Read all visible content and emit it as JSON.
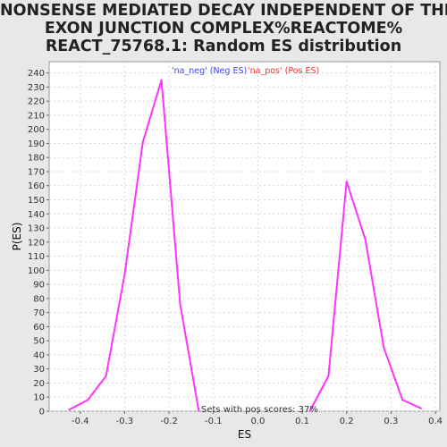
{
  "chart_data": {
    "type": "line",
    "title_lines": [
      "NONSENSE MEDIATED DECAY INDEPENDENT OF THE",
      "EXON JUNCTION COMPLEX%REACTOME%",
      "REACT_75768.1: Random ES distribution"
    ],
    "xlabel": "ES",
    "ylabel": "P(ES)",
    "xlim": [
      -0.47,
      0.41
    ],
    "ylim": [
      0,
      248
    ],
    "x_ticks": [
      -0.4,
      -0.3,
      -0.2,
      -0.1,
      0.0,
      0.1,
      0.2,
      0.3,
      0.4
    ],
    "x_tick_labels": [
      "-0.4",
      "-0.3",
      "-0.2",
      "-0.1",
      "0.0",
      "0.1",
      "0.2",
      "0.3",
      "0.4"
    ],
    "y_ticks": [
      0,
      10,
      20,
      30,
      40,
      50,
      60,
      70,
      80,
      90,
      100,
      110,
      120,
      130,
      140,
      150,
      160,
      170,
      180,
      190,
      200,
      210,
      220,
      230,
      240
    ],
    "grid": true,
    "legend": [
      {
        "label": "'na_neg' (Neg ES)",
        "color": "#4040ff"
      },
      {
        "label": "'na_pos' (Pos ES)",
        "color": "#ff3030"
      }
    ],
    "legend_position": "top-center",
    "annotation": "Sets with pos scores: 37%",
    "series": [
      {
        "color": "#ff33ff",
        "x": [
          -0.425,
          -0.383,
          -0.342,
          -0.3,
          -0.259,
          -0.217,
          -0.175,
          -0.133
        ],
        "y": [
          1,
          8,
          25,
          97,
          191,
          235,
          76,
          0
        ]
      },
      {
        "color": "#ff33ff",
        "x": [
          0.117,
          0.159,
          0.2,
          0.242,
          0.284,
          0.326,
          0.368
        ],
        "y": [
          0,
          25,
          163,
          122,
          45,
          8,
          2
        ]
      }
    ]
  }
}
